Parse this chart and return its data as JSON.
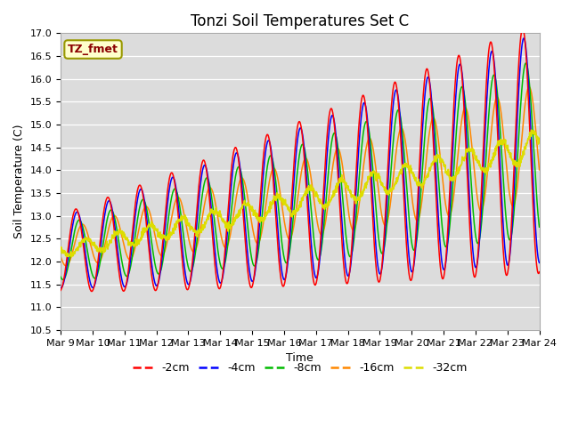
{
  "title": "Tonzi Soil Temperatures Set C",
  "xlabel": "Time",
  "ylabel": "Soil Temperature (C)",
  "ylim": [
    10.5,
    17.0
  ],
  "yticks": [
    10.5,
    11.0,
    11.5,
    12.0,
    12.5,
    13.0,
    13.5,
    14.0,
    14.5,
    15.0,
    15.5,
    16.0,
    16.5,
    17.0
  ],
  "xtick_labels": [
    "Mar 9",
    "Mar 10",
    "Mar 11",
    "Mar 12",
    "Mar 13",
    "Mar 14",
    "Mar 15",
    "Mar 16",
    "Mar 17",
    "Mar 18",
    "Mar 19",
    "Mar 20",
    "Mar 21",
    "Mar 22",
    "Mar 23",
    "Mar 24"
  ],
  "colors": {
    "-2cm": "#ff0000",
    "-4cm": "#0000ff",
    "-8cm": "#00bb00",
    "-16cm": "#ff8800",
    "-32cm": "#dddd00"
  },
  "annotation_text": "TZ_fmet",
  "annotation_color": "#8b0000",
  "annotation_bg": "#ffffcc",
  "annotation_border": "#999900",
  "bg_color": "#dcdcdc",
  "title_fontsize": 12,
  "label_fontsize": 9,
  "tick_fontsize": 8
}
